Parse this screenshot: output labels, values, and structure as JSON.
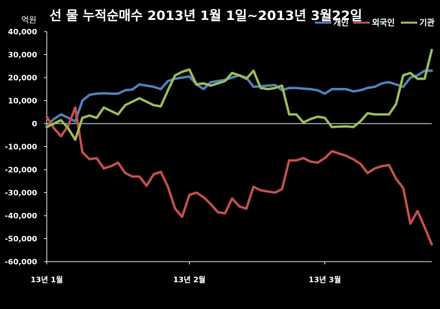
{
  "chart_data": {
    "type": "line",
    "title": "선 물 누적순매수 2013년 1월 1일~2013년 3월22일",
    "y_unit_label": "억원",
    "ylim": [
      -60000,
      40000
    ],
    "yticks": [
      40000,
      30000,
      20000,
      10000,
      0,
      -10000,
      -20000,
      -30000,
      -40000,
      -50000,
      -60000
    ],
    "ytick_labels": [
      "40,000",
      "30,000",
      "20,000",
      "10,000",
      "0",
      "-10,000",
      "-20,000",
      "-30,000",
      "-40,000",
      "-50,000",
      "-60,000"
    ],
    "x_tick_labels": [
      "13년 1월",
      "13년 2월",
      "13년 3월"
    ],
    "x_tick_positions": [
      0,
      20,
      39
    ],
    "x_count": 55,
    "grid": false,
    "legend_position": "top-right",
    "series": [
      {
        "name": "개인",
        "color": "#4F81BD",
        "values": [
          -1000,
          2000,
          4000,
          2500,
          1000,
          10000,
          12500,
          13000,
          13200,
          13000,
          13000,
          14500,
          14800,
          17000,
          16500,
          16000,
          15000,
          18500,
          19500,
          20000,
          20500,
          17000,
          15000,
          18000,
          18500,
          19000,
          20000,
          21000,
          20000,
          16000,
          16200,
          16500,
          16800,
          14500,
          15500,
          15500,
          15200,
          15000,
          14500,
          13000,
          15000,
          15000,
          15000,
          14000,
          14500,
          15500,
          16000,
          17500,
          18000,
          17000,
          16000,
          20000,
          21000,
          23000,
          23000
        ]
      },
      {
        "name": "외국인",
        "color": "#C0504D",
        "values": [
          3000,
          -2000,
          -5500,
          -1000,
          7000,
          -12500,
          -15500,
          -15000,
          -19500,
          -18500,
          -17000,
          -21500,
          -23000,
          -23000,
          -27000,
          -22000,
          -21000,
          -27500,
          -37000,
          -40500,
          -31000,
          -30000,
          -32000,
          -35000,
          -38500,
          -39000,
          -32500,
          -36000,
          -37000,
          -27500,
          -29000,
          -29500,
          -30000,
          -28500,
          -16000,
          -16000,
          -15000,
          -16500,
          -17000,
          -15000,
          -12000,
          -13000,
          -14000,
          -15500,
          -17500,
          -21500,
          -19500,
          -18500,
          -18000,
          -24000,
          -28000,
          -43500,
          -38000,
          -45000,
          -52500
        ]
      },
      {
        "name": "기관",
        "color": "#9BBB59",
        "values": [
          -1500,
          0,
          1500,
          -2000,
          -7000,
          2500,
          3500,
          2500,
          7000,
          5500,
          4000,
          8000,
          9500,
          11000,
          9500,
          8000,
          7500,
          14500,
          21000,
          22500,
          23500,
          17000,
          17500,
          16500,
          17500,
          18500,
          22000,
          21000,
          19500,
          23000,
          15500,
          15000,
          15500,
          16500,
          4000,
          4000,
          500,
          2000,
          3000,
          2500,
          -1500,
          -1300,
          -1200,
          -1500,
          1000,
          4500,
          4000,
          4000,
          4000,
          8500,
          21000,
          22000,
          19500,
          19500,
          32000
        ]
      }
    ]
  }
}
